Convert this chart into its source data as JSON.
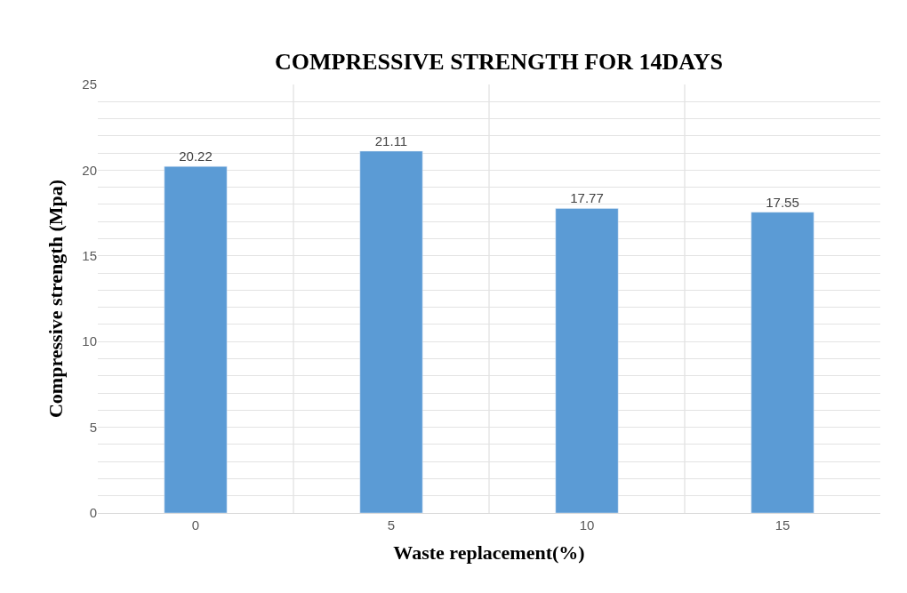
{
  "chart_data": {
    "type": "bar",
    "title": "COMPRESSIVE STRENGTH FOR 14DAYS",
    "xlabel": "Waste replacement(%)",
    "ylabel": "Compressive strength (Mpa)",
    "categories": [
      "0",
      "5",
      "10",
      "15"
    ],
    "values": [
      20.22,
      21.11,
      17.77,
      17.55
    ],
    "color": "#5b9bd5",
    "data_labels": true,
    "grid": true,
    "ylim": [
      0,
      25
    ],
    "yticks": [
      0,
      {
        "value": 1,
        "label": null
      },
      {
        "value": 2,
        "label": null
      },
      {
        "value": 3,
        "label": null
      },
      {
        "value": 4,
        "label": null
      },
      5,
      {
        "value": 6,
        "label": null
      },
      {
        "value": 7,
        "label": null
      },
      {
        "value": 8,
        "label": null
      },
      {
        "value": 9,
        "label": null
      },
      10,
      {
        "value": 11,
        "label": null
      },
      {
        "value": 12,
        "label": null
      },
      {
        "value": 13,
        "label": null
      },
      {
        "value": 14,
        "label": null
      },
      15,
      {
        "value": 16,
        "label": null
      },
      {
        "value": 17,
        "label": null
      },
      {
        "value": 18,
        "label": null
      },
      {
        "value": 19,
        "label": null
      },
      20,
      {
        "value": 21,
        "label": null
      },
      {
        "value": 22,
        "label": null
      },
      {
        "value": 23,
        "label": null
      },
      {
        "value": 24,
        "label": null
      },
      25
    ]
  }
}
